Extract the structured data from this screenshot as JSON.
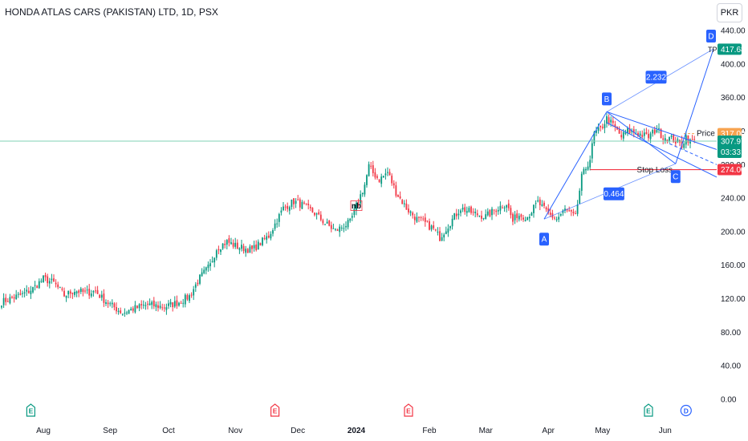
{
  "header": {
    "title": "HONDA ATLAS CARS (PAKISTAN) LTD, 1D, PSX",
    "currency": "PKR"
  },
  "chart_data": {
    "type": "candlestick",
    "ylim": [
      0,
      440
    ],
    "y_ticks": [
      "0.00",
      "40.00",
      "80.00",
      "120.00",
      "160.00",
      "200.00",
      "240.00",
      "280.00",
      "320.00",
      "360.00",
      "400.00",
      "440.00"
    ],
    "x_labels": [
      "Aug",
      "Sep",
      "Oct",
      "Nov",
      "Dec",
      "2024",
      "Feb",
      "Mar",
      "Apr",
      "May",
      "Jun"
    ],
    "price_line": {
      "label": "Price",
      "value": "317.00"
    },
    "last_price": {
      "value": "307.97",
      "countdown": "03:33:43"
    },
    "stop_loss": {
      "label": "Stop Loss",
      "value": "274.00"
    },
    "target": {
      "label": "TP",
      "value": "417.68"
    },
    "pattern": {
      "points": [
        {
          "label": "A",
          "date_index": 0,
          "price": 215
        },
        {
          "label": "B",
          "date_index": 1,
          "price": 343
        },
        {
          "label": "C",
          "date_index": 2,
          "price": 281
        },
        {
          "label": "D",
          "date_index": 3,
          "price": 418
        }
      ],
      "ratios": [
        "0.464",
        "2.232"
      ]
    },
    "events": [
      "E",
      "E",
      "E",
      "E",
      "D"
    ],
    "marker_text": "nb",
    "colors": {
      "up": "#089981",
      "down": "#f23645",
      "pattern": "#2962ff",
      "price_tag": "#f7a350",
      "stop_tag": "#f23645",
      "last_tag": "#089981"
    },
    "waypoints": [
      [
        0,
        116
      ],
      [
        5,
        121
      ],
      [
        10,
        125
      ],
      [
        15,
        132
      ],
      [
        20,
        144
      ],
      [
        25,
        139
      ],
      [
        30,
        124
      ],
      [
        35,
        130
      ],
      [
        40,
        127
      ],
      [
        45,
        129
      ],
      [
        48,
        121
      ],
      [
        52,
        113
      ],
      [
        58,
        103
      ],
      [
        63,
        108
      ],
      [
        70,
        113
      ],
      [
        78,
        110
      ],
      [
        85,
        116
      ],
      [
        90,
        123
      ],
      [
        95,
        145
      ],
      [
        100,
        160
      ],
      [
        103,
        180
      ],
      [
        108,
        188
      ],
      [
        113,
        182
      ],
      [
        120,
        178
      ],
      [
        128,
        195
      ],
      [
        135,
        228
      ],
      [
        140,
        236
      ],
      [
        145,
        231
      ],
      [
        150,
        222
      ],
      [
        155,
        210
      ],
      [
        160,
        201
      ],
      [
        164,
        207
      ],
      [
        167,
        211
      ],
      [
        171,
        237
      ],
      [
        174,
        256
      ],
      [
        176,
        278
      ],
      [
        178,
        270
      ],
      [
        181,
        262
      ],
      [
        185,
        271
      ],
      [
        189,
        247
      ],
      [
        194,
        228
      ],
      [
        199,
        215
      ],
      [
        203,
        210
      ],
      [
        207,
        203
      ],
      [
        210,
        193
      ],
      [
        215,
        211
      ],
      [
        220,
        228
      ],
      [
        226,
        222
      ],
      [
        232,
        218
      ],
      [
        237,
        227
      ],
      [
        242,
        234
      ],
      [
        245,
        212
      ],
      [
        247,
        220
      ],
      [
        252,
        218
      ],
      [
        257,
        235
      ],
      [
        262,
        221
      ],
      [
        266,
        215
      ],
      [
        270,
        226
      ],
      [
        275,
        217
      ],
      [
        278,
        265
      ],
      [
        282,
        287
      ],
      [
        284,
        317
      ],
      [
        287,
        322
      ],
      [
        290,
        335
      ],
      [
        293,
        327
      ],
      [
        297,
        313
      ],
      [
        300,
        320
      ],
      [
        305,
        317
      ],
      [
        310,
        313
      ],
      [
        314,
        323
      ],
      [
        317,
        313
      ],
      [
        321,
        311
      ],
      [
        326,
        303
      ],
      [
        328,
        314
      ],
      [
        330,
        307
      ],
      [
        332,
        310
      ]
    ]
  }
}
